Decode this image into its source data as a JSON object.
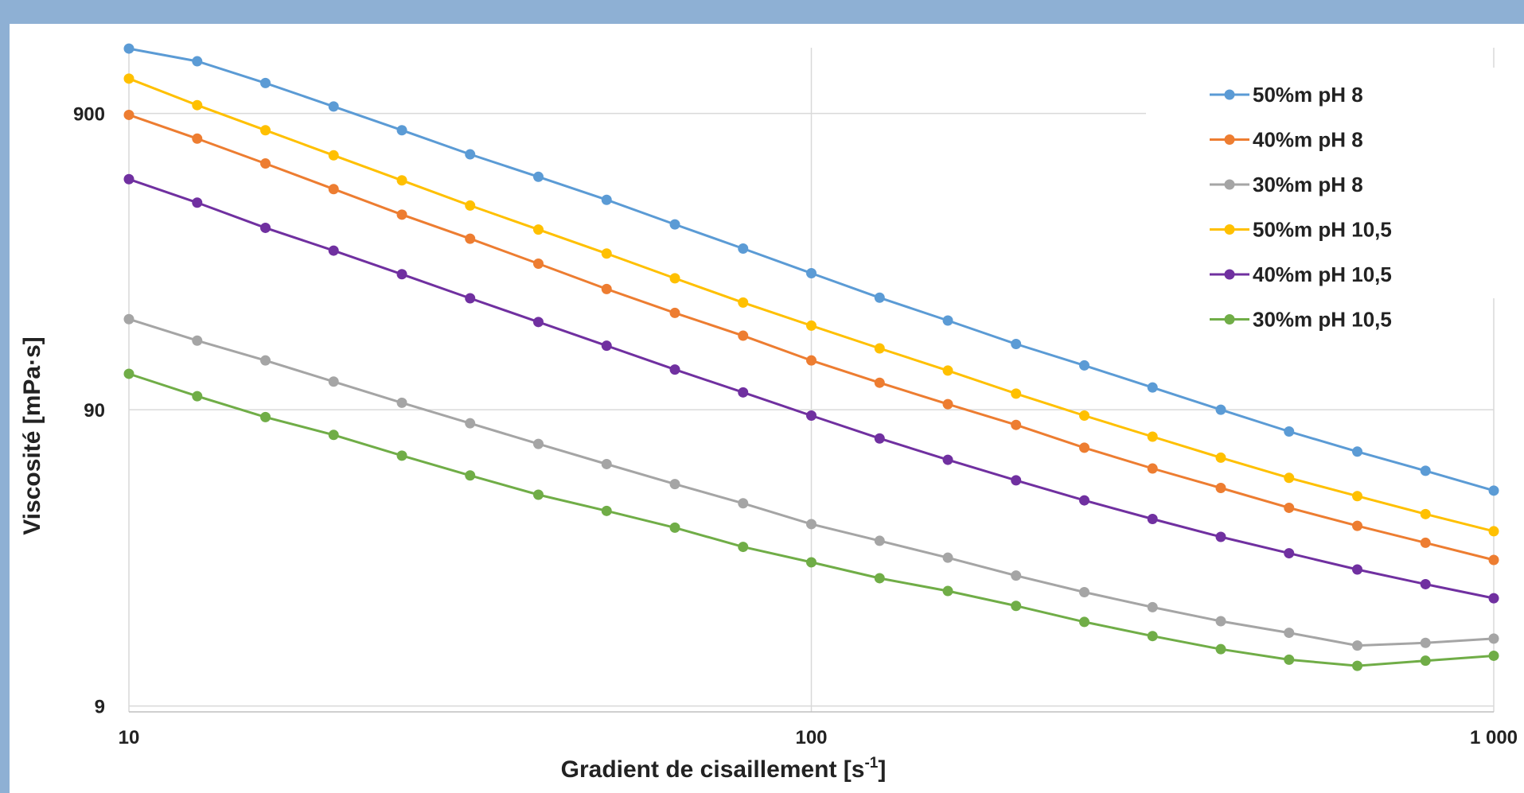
{
  "chart_data": {
    "type": "line",
    "xscale": "log",
    "yscale": "log",
    "xlim": [
      10,
      1000
    ],
    "ylim": [
      8.6,
      1500
    ],
    "xticks": [
      {
        "value": 10,
        "label": "10"
      },
      {
        "value": 100,
        "label": "100"
      },
      {
        "value": 1000,
        "label": "1 000"
      }
    ],
    "yticks": [
      {
        "value": 9,
        "label": "9"
      },
      {
        "value": 90,
        "label": "90"
      },
      {
        "value": 900,
        "label": "900"
      }
    ],
    "xlabel": "Gradient de cisaillement [s",
    "xlabel_sup": "-1",
    "xlabel_end": "]",
    "ylabel": "Viscosité [mPa·s]",
    "grid": true,
    "legend_position": "top-right",
    "x": [
      10,
      12.59,
      15.85,
      19.95,
      25.12,
      31.62,
      39.81,
      50.12,
      63.1,
      79.43,
      100,
      125.9,
      158.5,
      199.5,
      251.2,
      316.2,
      398.1,
      501.2,
      631,
      794.3,
      1000
    ],
    "series": [
      {
        "name": "50%m pH 8",
        "color": "#5b9bd5",
        "values": [
          1490,
          1350,
          1140,
          950,
          790,
          655,
          550,
          460,
          380,
          315,
          260,
          215,
          180,
          150,
          127,
          107,
          90,
          76,
          65,
          56,
          48
        ]
      },
      {
        "name": "40%m pH 8",
        "color": "#ed7d31",
        "values": [
          890,
          740,
          610,
          500,
          410,
          340,
          280,
          230,
          191,
          160,
          132,
          111,
          94,
          80,
          67,
          57,
          49,
          42,
          36.5,
          32,
          28
        ]
      },
      {
        "name": "30%m pH 8",
        "color": "#a5a5a5",
        "values": [
          182,
          154,
          132,
          112,
          95,
          81,
          69,
          59,
          50.5,
          43.5,
          37,
          32.5,
          28.5,
          24.8,
          21.8,
          19.4,
          17.4,
          15.9,
          14.4,
          14.7,
          15.2
        ]
      },
      {
        "name": "50%m pH 10,5",
        "color": "#ffc000",
        "values": [
          1180,
          960,
          790,
          650,
          535,
          440,
          365,
          303,
          250,
          207,
          173,
          145,
          122,
          102,
          86,
          73,
          62,
          53,
          46,
          40,
          35
        ]
      },
      {
        "name": "40%m pH 10,5",
        "color": "#7030a0",
        "values": [
          540,
          450,
          370,
          310,
          258,
          214,
          178,
          148,
          123,
          103,
          86,
          72,
          61,
          52,
          44.5,
          38.5,
          33.5,
          29.5,
          26,
          23.2,
          20.8
        ]
      },
      {
        "name": "30%m pH 10,5",
        "color": "#70ad47",
        "values": [
          119,
          100,
          85,
          74,
          63,
          54,
          46.5,
          41,
          36,
          31,
          27.5,
          24.3,
          22,
          19.6,
          17.3,
          15.5,
          14,
          12.9,
          12.3,
          12.8,
          13.3
        ]
      }
    ]
  }
}
